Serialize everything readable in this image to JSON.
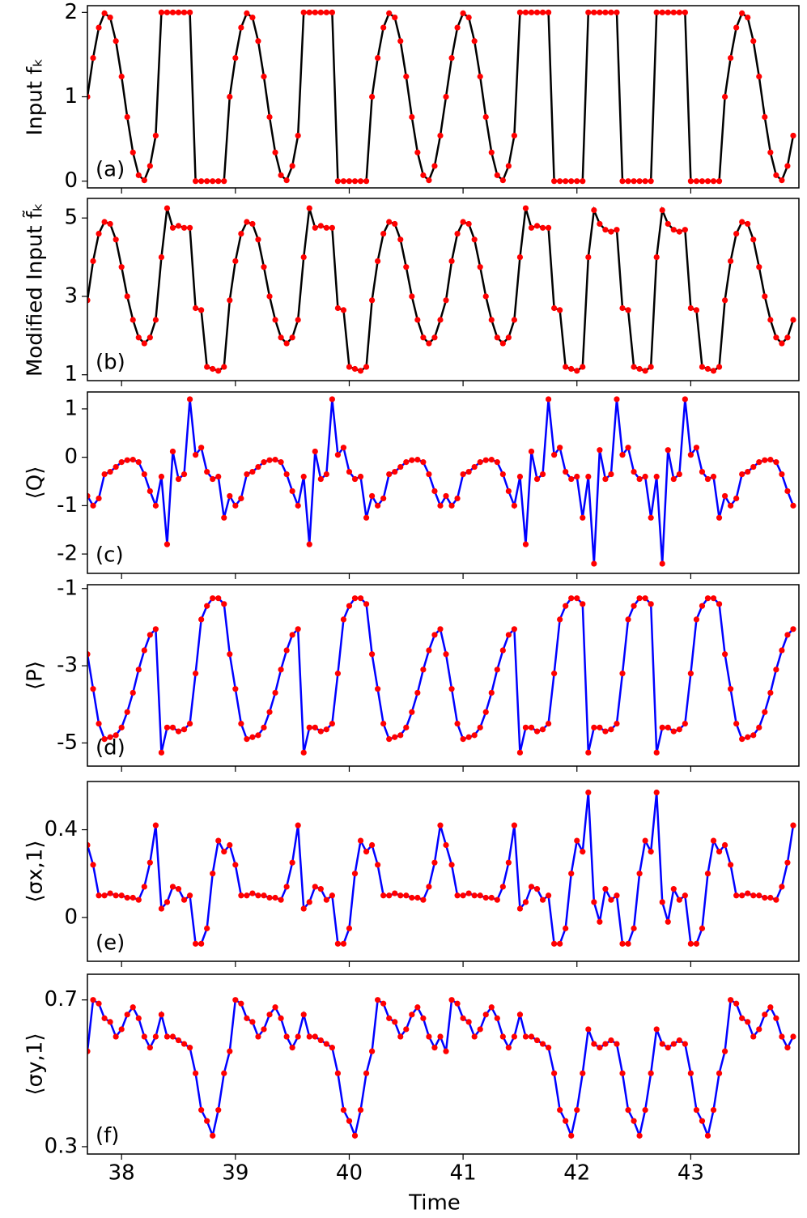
{
  "chart_data": {
    "type": "line",
    "xlabel": "Time",
    "xlim": [
      37.7,
      43.95
    ],
    "xticks": [
      38,
      39,
      40,
      41,
      42,
      43
    ],
    "x": [
      37.7,
      37.75,
      37.8,
      37.85,
      37.9,
      37.95,
      38,
      38.05,
      38.1,
      38.15,
      38.2,
      38.25,
      38.3,
      38.35,
      38.4,
      38.45,
      38.5,
      38.55,
      38.6,
      38.65,
      38.7,
      38.75,
      38.8,
      38.85,
      38.9,
      38.95,
      39,
      39.05,
      39.1,
      39.15,
      39.2,
      39.25,
      39.3,
      39.35,
      39.4,
      39.45,
      39.5,
      39.55,
      39.6,
      39.65,
      39.7,
      39.75,
      39.8,
      39.85,
      39.9,
      39.95,
      40,
      40.05,
      40.1,
      40.15,
      40.2,
      40.25,
      40.3,
      40.35,
      40.4,
      40.45,
      40.5,
      40.55,
      40.6,
      40.65,
      40.7,
      40.75,
      40.8,
      40.85,
      40.9,
      40.95,
      41,
      41.05,
      41.1,
      41.15,
      41.2,
      41.25,
      41.3,
      41.35,
      41.4,
      41.45,
      41.5,
      41.55,
      41.6,
      41.65,
      41.7,
      41.75,
      41.8,
      41.85,
      41.9,
      41.95,
      42,
      42.05,
      42.1,
      42.15,
      42.2,
      42.25,
      42.3,
      42.35,
      42.4,
      42.45,
      42.5,
      42.55,
      42.6,
      42.65,
      42.7,
      42.75,
      42.8,
      42.85,
      42.9,
      42.95,
      43,
      43.05,
      43.1,
      43.15,
      43.2,
      43.25,
      43.3,
      43.35,
      43.4,
      43.45,
      43.5,
      43.55,
      43.6,
      43.65,
      43.7,
      43.75,
      43.8,
      43.85,
      43.9
    ],
    "panels": [
      {
        "ylabel": "Input fₖ",
        "label": "(a)",
        "ylim": [
          -0.08,
          2.08
        ],
        "yticks": [
          0,
          1,
          2
        ],
        "color": "#000000",
        "marker_color": "#ff0000",
        "values": [
          1,
          1.46,
          1.82,
          1.99,
          1.94,
          1.66,
          1.24,
          0.76,
          0.34,
          0.07,
          0.01,
          0.18,
          0.54,
          2,
          2,
          2,
          2,
          2,
          2,
          0,
          0,
          0,
          0,
          0,
          0,
          1,
          1.46,
          1.82,
          1.99,
          1.94,
          1.66,
          1.24,
          0.76,
          0.34,
          0.07,
          0.01,
          0.18,
          0.54,
          2,
          2,
          2,
          2,
          2,
          2,
          0,
          0,
          0,
          0,
          0,
          0,
          1,
          1.46,
          1.82,
          1.99,
          1.94,
          1.66,
          1.24,
          0.76,
          0.34,
          0.07,
          0.01,
          0.18,
          0.54,
          1,
          1.46,
          1.82,
          1.99,
          1.94,
          1.66,
          1.24,
          0.76,
          0.34,
          0.07,
          0.01,
          0.18,
          0.54,
          2,
          2,
          2,
          2,
          2,
          2,
          0,
          0,
          0,
          0,
          0,
          0,
          2,
          2,
          2,
          2,
          2,
          2,
          0,
          0,
          0,
          0,
          0,
          0,
          2,
          2,
          2,
          2,
          2,
          2,
          0,
          0,
          0,
          0,
          0,
          0,
          1,
          1.46,
          1.82,
          1.99,
          1.94,
          1.66,
          1.24,
          0.76,
          0.34,
          0.07,
          0.01,
          0.18,
          0.54
        ]
      },
      {
        "ylabel": "Modified Input f̃ₖ",
        "label": "(b)",
        "ylim": [
          0.85,
          5.5
        ],
        "yticks": [
          1,
          3,
          5
        ],
        "color": "#000000",
        "marker_color": "#ff0000",
        "values": [
          2.9,
          3.9,
          4.6,
          4.9,
          4.85,
          4.45,
          3.75,
          3.0,
          2.4,
          1.95,
          1.8,
          1.95,
          2.4,
          4.0,
          5.25,
          4.75,
          4.8,
          4.75,
          4.75,
          2.7,
          2.65,
          1.2,
          1.15,
          1.1,
          1.2,
          2.9,
          3.9,
          4.6,
          4.9,
          4.85,
          4.45,
          3.75,
          3.0,
          2.4,
          1.95,
          1.8,
          1.95,
          2.4,
          4.0,
          5.25,
          4.75,
          4.8,
          4.75,
          4.75,
          2.7,
          2.65,
          1.2,
          1.15,
          1.1,
          1.2,
          2.9,
          3.9,
          4.6,
          4.9,
          4.85,
          4.45,
          3.75,
          3.0,
          2.4,
          1.95,
          1.8,
          1.95,
          2.4,
          2.9,
          3.9,
          4.6,
          4.9,
          4.85,
          4.45,
          3.75,
          3.0,
          2.4,
          1.95,
          1.8,
          1.95,
          2.4,
          4.0,
          5.25,
          4.75,
          4.8,
          4.75,
          4.75,
          2.7,
          2.65,
          1.2,
          1.15,
          1.1,
          1.2,
          4.0,
          5.2,
          4.85,
          4.7,
          4.65,
          4.7,
          2.7,
          2.65,
          1.2,
          1.15,
          1.1,
          1.2,
          4.0,
          5.2,
          4.85,
          4.7,
          4.65,
          4.7,
          2.7,
          2.65,
          1.2,
          1.15,
          1.1,
          1.2,
          2.9,
          3.9,
          4.6,
          4.9,
          4.85,
          4.45,
          3.75,
          3.0,
          2.4,
          1.95,
          1.8,
          1.95,
          2.4
        ]
      },
      {
        "ylabel": "⟨Q⟩",
        "label": "(c)",
        "ylim": [
          -2.4,
          1.35
        ],
        "yticks": [
          -2,
          -1,
          0,
          1
        ],
        "color": "#0000ff",
        "marker_color": "#ff0000",
        "values": [
          -0.8,
          -1.0,
          -0.85,
          -0.35,
          -0.3,
          -0.2,
          -0.1,
          -0.06,
          -0.05,
          -0.1,
          -0.35,
          -0.7,
          -1.0,
          -0.4,
          -1.8,
          0.12,
          -0.45,
          -0.35,
          1.2,
          0.05,
          0.2,
          -0.3,
          -0.45,
          -0.4,
          -1.25,
          -0.8,
          -1.0,
          -0.85,
          -0.35,
          -0.3,
          -0.2,
          -0.1,
          -0.06,
          -0.05,
          -0.1,
          -0.35,
          -0.7,
          -1.0,
          -0.4,
          -1.8,
          0.12,
          -0.45,
          -0.35,
          1.2,
          0.05,
          0.2,
          -0.3,
          -0.45,
          -0.4,
          -1.25,
          -0.8,
          -1.0,
          -0.85,
          -0.35,
          -0.3,
          -0.2,
          -0.1,
          -0.06,
          -0.05,
          -0.1,
          -0.35,
          -0.7,
          -1.0,
          -0.8,
          -1.0,
          -0.85,
          -0.35,
          -0.3,
          -0.2,
          -0.1,
          -0.06,
          -0.05,
          -0.1,
          -0.35,
          -0.7,
          -1.0,
          -0.4,
          -1.8,
          0.12,
          -0.45,
          -0.35,
          1.2,
          0.05,
          0.2,
          -0.3,
          -0.45,
          -0.4,
          -1.25,
          -0.4,
          -2.2,
          0.15,
          -0.45,
          -0.35,
          1.2,
          0.05,
          0.2,
          -0.3,
          -0.45,
          -0.4,
          -1.25,
          -0.4,
          -2.2,
          0.15,
          -0.45,
          -0.35,
          1.2,
          0.05,
          0.2,
          -0.3,
          -0.45,
          -0.4,
          -1.25,
          -0.8,
          -1.0,
          -0.85,
          -0.35,
          -0.3,
          -0.2,
          -0.1,
          -0.06,
          -0.05,
          -0.1,
          -0.35,
          -0.7,
          -1.0
        ]
      },
      {
        "ylabel": "⟨P⟩",
        "label": "(d)",
        "ylim": [
          -5.6,
          -0.9
        ],
        "yticks": [
          -5,
          -3,
          -1
        ],
        "color": "#0000ff",
        "marker_color": "#ff0000",
        "values": [
          -2.7,
          -3.6,
          -4.5,
          -4.9,
          -4.85,
          -4.8,
          -4.6,
          -4.2,
          -3.7,
          -3.1,
          -2.6,
          -2.2,
          -2.05,
          -5.25,
          -4.6,
          -4.6,
          -4.7,
          -4.65,
          -4.5,
          -3.2,
          -1.8,
          -1.45,
          -1.25,
          -1.25,
          -1.4,
          -2.7,
          -3.6,
          -4.5,
          -4.9,
          -4.85,
          -4.8,
          -4.6,
          -4.2,
          -3.7,
          -3.1,
          -2.6,
          -2.2,
          -2.05,
          -5.25,
          -4.6,
          -4.6,
          -4.7,
          -4.65,
          -4.5,
          -3.2,
          -1.8,
          -1.45,
          -1.25,
          -1.25,
          -1.4,
          -2.7,
          -3.6,
          -4.5,
          -4.9,
          -4.85,
          -4.8,
          -4.6,
          -4.2,
          -3.7,
          -3.1,
          -2.6,
          -2.2,
          -2.05,
          -2.7,
          -3.6,
          -4.5,
          -4.9,
          -4.85,
          -4.8,
          -4.6,
          -4.2,
          -3.7,
          -3.1,
          -2.6,
          -2.2,
          -2.05,
          -5.25,
          -4.6,
          -4.6,
          -4.7,
          -4.65,
          -4.5,
          -3.2,
          -1.8,
          -1.45,
          -1.25,
          -1.25,
          -1.4,
          -5.25,
          -4.6,
          -4.6,
          -4.7,
          -4.65,
          -4.5,
          -3.2,
          -1.8,
          -1.45,
          -1.25,
          -1.25,
          -1.4,
          -5.25,
          -4.6,
          -4.6,
          -4.7,
          -4.65,
          -4.5,
          -3.2,
          -1.8,
          -1.45,
          -1.25,
          -1.25,
          -1.4,
          -2.7,
          -3.6,
          -4.5,
          -4.9,
          -4.85,
          -4.8,
          -4.6,
          -4.2,
          -3.7,
          -3.1,
          -2.6,
          -2.2,
          -2.05
        ]
      },
      {
        "ylabel": "⟨σx,1⟩",
        "label": "(e)",
        "ylim": [
          -0.2,
          0.62
        ],
        "yticks": [
          0,
          0.4
        ],
        "color": "#0000ff",
        "marker_color": "#ff0000",
        "values": [
          0.33,
          0.24,
          0.1,
          0.1,
          0.11,
          0.1,
          0.1,
          0.09,
          0.09,
          0.08,
          0.14,
          0.25,
          0.42,
          0.04,
          0.07,
          0.14,
          0.13,
          0.08,
          0.1,
          -0.12,
          -0.12,
          -0.05,
          0.2,
          0.35,
          0.3,
          0.33,
          0.24,
          0.1,
          0.1,
          0.11,
          0.1,
          0.1,
          0.09,
          0.09,
          0.08,
          0.14,
          0.25,
          0.42,
          0.04,
          0.07,
          0.14,
          0.13,
          0.08,
          0.1,
          -0.12,
          -0.12,
          -0.05,
          0.2,
          0.35,
          0.3,
          0.33,
          0.24,
          0.1,
          0.1,
          0.11,
          0.1,
          0.1,
          0.09,
          0.09,
          0.08,
          0.14,
          0.25,
          0.42,
          0.33,
          0.24,
          0.1,
          0.1,
          0.11,
          0.1,
          0.1,
          0.09,
          0.09,
          0.08,
          0.14,
          0.25,
          0.42,
          0.04,
          0.07,
          0.14,
          0.13,
          0.08,
          0.1,
          -0.12,
          -0.12,
          -0.05,
          0.2,
          0.35,
          0.3,
          0.57,
          0.07,
          -0.02,
          0.13,
          0.08,
          0.1,
          -0.12,
          -0.12,
          -0.05,
          0.2,
          0.35,
          0.3,
          0.57,
          0.07,
          -0.02,
          0.13,
          0.08,
          0.1,
          -0.12,
          -0.12,
          -0.05,
          0.2,
          0.35,
          0.3,
          0.33,
          0.24,
          0.1,
          0.1,
          0.11,
          0.1,
          0.1,
          0.09,
          0.09,
          0.08,
          0.14,
          0.25,
          0.42
        ]
      },
      {
        "ylabel": "⟨σy,1⟩",
        "label": "(f)",
        "ylim": [
          0.28,
          0.77
        ],
        "yticks": [
          0.3,
          0.7
        ],
        "color": "#0000ff",
        "marker_color": "#ff0000",
        "values": [
          0.56,
          0.7,
          0.69,
          0.65,
          0.64,
          0.6,
          0.62,
          0.66,
          0.68,
          0.65,
          0.6,
          0.57,
          0.6,
          0.66,
          0.6,
          0.6,
          0.59,
          0.58,
          0.57,
          0.5,
          0.4,
          0.37,
          0.33,
          0.4,
          0.5,
          0.56,
          0.7,
          0.69,
          0.65,
          0.64,
          0.6,
          0.62,
          0.66,
          0.68,
          0.65,
          0.6,
          0.57,
          0.6,
          0.66,
          0.6,
          0.6,
          0.59,
          0.58,
          0.57,
          0.5,
          0.4,
          0.37,
          0.33,
          0.4,
          0.5,
          0.56,
          0.7,
          0.69,
          0.65,
          0.64,
          0.6,
          0.62,
          0.66,
          0.68,
          0.65,
          0.6,
          0.57,
          0.6,
          0.56,
          0.7,
          0.69,
          0.65,
          0.64,
          0.6,
          0.62,
          0.66,
          0.68,
          0.65,
          0.6,
          0.57,
          0.6,
          0.66,
          0.6,
          0.6,
          0.59,
          0.58,
          0.57,
          0.5,
          0.4,
          0.37,
          0.33,
          0.4,
          0.5,
          0.62,
          0.58,
          0.57,
          0.58,
          0.59,
          0.58,
          0.5,
          0.4,
          0.37,
          0.33,
          0.4,
          0.5,
          0.62,
          0.58,
          0.57,
          0.58,
          0.59,
          0.58,
          0.5,
          0.4,
          0.37,
          0.33,
          0.4,
          0.5,
          0.56,
          0.7,
          0.69,
          0.65,
          0.64,
          0.6,
          0.62,
          0.66,
          0.68,
          0.65,
          0.6,
          0.57,
          0.6
        ]
      }
    ]
  }
}
